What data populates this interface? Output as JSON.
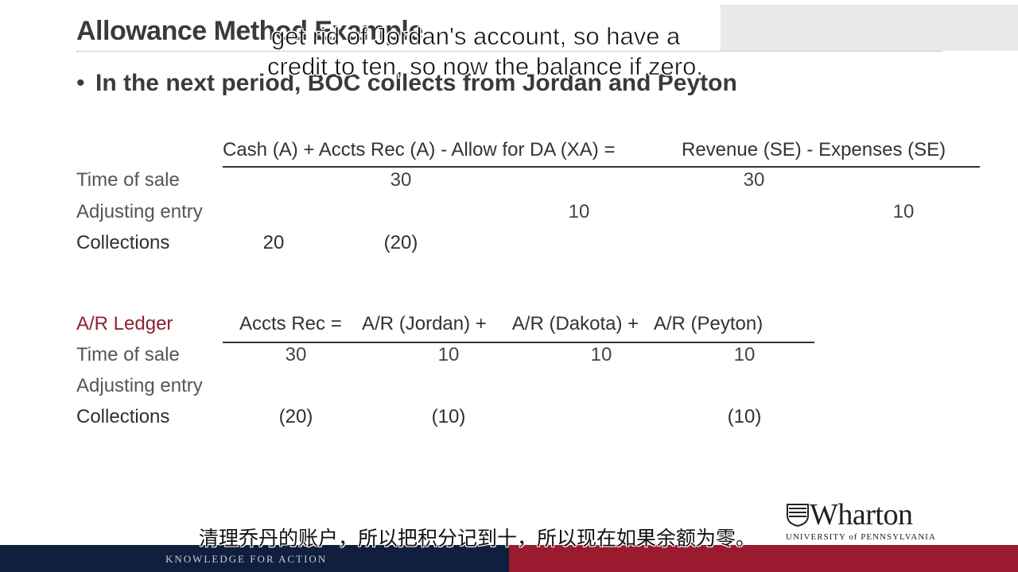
{
  "slide": {
    "title": "Allowance Method Example",
    "bullet": "In the next period, BOC collects from Jordan and Peyton"
  },
  "captions": {
    "english_line1": "get rid of Jordan's account, so have a",
    "english_line2": "credit to ten, so now the balance if zero.",
    "chinese": "清理乔丹的账户，所以把积分记到十，所以现在如果余额为零。"
  },
  "table1": {
    "header_left": "Cash (A) + Accts Rec (A) - Allow for DA (XA) =",
    "header_right": "Revenue (SE) - Expenses (SE)",
    "rows": [
      {
        "label": "Time of sale",
        "accts_rec": "30",
        "revenue": "30"
      },
      {
        "label": "Adjusting entry",
        "allow": "10",
        "expenses": "10"
      },
      {
        "label": "Collections",
        "cash": "20",
        "accts_rec": "(20)"
      }
    ]
  },
  "table2": {
    "ledger_label": "A/R Ledger",
    "header": "Accts Rec =    A/R (Jordan) +     A/R (Dakota) +   A/R (Peyton)",
    "rows": [
      {
        "label": "Time of sale",
        "accts_rec": "30",
        "jordan": "10",
        "dakota": "10",
        "peyton": "10"
      },
      {
        "label": "Adjusting entry"
      },
      {
        "label": "Collections",
        "accts_rec": "(20)",
        "jordan": "(10)",
        "peyton": "(10)"
      }
    ]
  },
  "branding": {
    "logo_word": "Wharton",
    "logo_sub": "UNIVERSITY of PENNSYLVANIA",
    "tagline": "KNOWLEDGE FOR ACTION"
  },
  "colors": {
    "footer_dark": "#0f1f3d",
    "footer_red": "#9a1b2f",
    "ledger_label": "#8f2233"
  }
}
